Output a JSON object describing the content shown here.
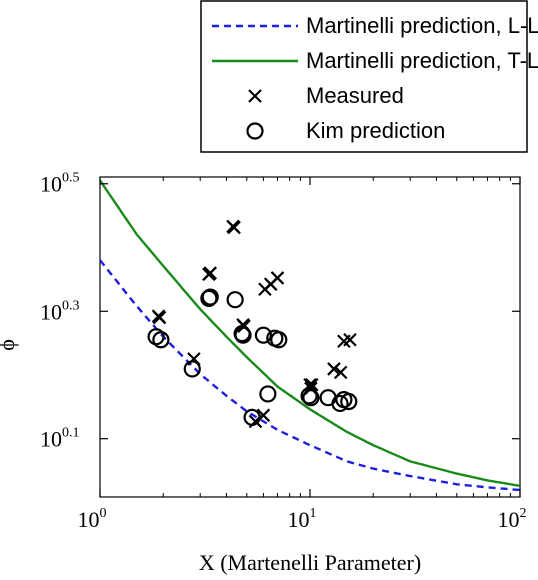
{
  "chart_data": {
    "type": "scatter",
    "xlabel": "X (Martenelli Parameter)",
    "ylabel": "ϕ",
    "x_scale": "log",
    "y_scale": "log",
    "xlim": [
      1,
      100
    ],
    "ylim": [
      1.02,
      3.24
    ],
    "x_ticks": [
      {
        "value": 1,
        "base": "10",
        "exp": "0"
      },
      {
        "value": 10,
        "base": "10",
        "exp": "1"
      },
      {
        "value": 100,
        "base": "10",
        "exp": "2"
      }
    ],
    "y_ticks": [
      {
        "value": 1.259,
        "base": "10",
        "exp": "0.1"
      },
      {
        "value": 1.995,
        "base": "10",
        "exp": "0.3"
      },
      {
        "value": 3.162,
        "base": "10",
        "exp": "0.5"
      }
    ],
    "grid": false,
    "legend_position": "top",
    "series": [
      {
        "name": "Martinelli prediction, L-L",
        "kind": "line",
        "style": "dashed",
        "color": "#1f1fe0",
        "x": [
          1,
          1.5,
          2,
          3,
          4,
          5,
          7,
          10,
          15,
          20,
          30,
          50,
          70,
          100
        ],
        "y": [
          2.4,
          2.03,
          1.82,
          1.59,
          1.47,
          1.39,
          1.3,
          1.23,
          1.16,
          1.13,
          1.1,
          1.068,
          1.056,
          1.046
        ]
      },
      {
        "name": "Martinelli prediction, T-L",
        "kind": "line",
        "style": "solid",
        "color": "#1a8a1a",
        "x": [
          1,
          1.5,
          2,
          3,
          4,
          5,
          7,
          10,
          15,
          20,
          30,
          50,
          70,
          100
        ],
        "y": [
          3.2,
          2.63,
          2.35,
          2.01,
          1.82,
          1.69,
          1.52,
          1.4,
          1.29,
          1.23,
          1.16,
          1.11,
          1.083,
          1.062
        ]
      },
      {
        "name": "Measured",
        "kind": "marker",
        "marker": "x",
        "color": "#000000",
        "x": [
          1.9,
          1.92,
          2.8,
          3.3,
          3.35,
          4.3,
          4.35,
          4.8,
          4.85,
          5.5,
          6.0,
          6.1,
          6.5,
          7.0,
          10.0,
          10.1,
          10.2,
          13.0,
          14.0,
          14.5,
          15.5
        ],
        "y": [
          1.96,
          1.95,
          1.68,
          2.28,
          2.29,
          2.71,
          2.7,
          1.9,
          1.89,
          1.34,
          1.37,
          2.16,
          2.2,
          2.25,
          1.53,
          1.51,
          1.53,
          1.62,
          1.6,
          1.79,
          1.8
        ]
      },
      {
        "name": "Kim prediction",
        "kind": "marker",
        "marker": "o",
        "color": "#000000",
        "x": [
          1.85,
          1.95,
          2.75,
          3.3,
          3.35,
          4.4,
          4.75,
          4.8,
          5.3,
          6.0,
          6.3,
          6.8,
          7.1,
          9.9,
          10.1,
          12.2,
          13.9,
          14.5,
          15.3
        ],
        "y": [
          1.82,
          1.8,
          1.62,
          2.09,
          2.1,
          2.08,
          1.84,
          1.83,
          1.36,
          1.83,
          1.48,
          1.81,
          1.8,
          1.47,
          1.46,
          1.46,
          1.43,
          1.45,
          1.44
        ]
      }
    ]
  }
}
